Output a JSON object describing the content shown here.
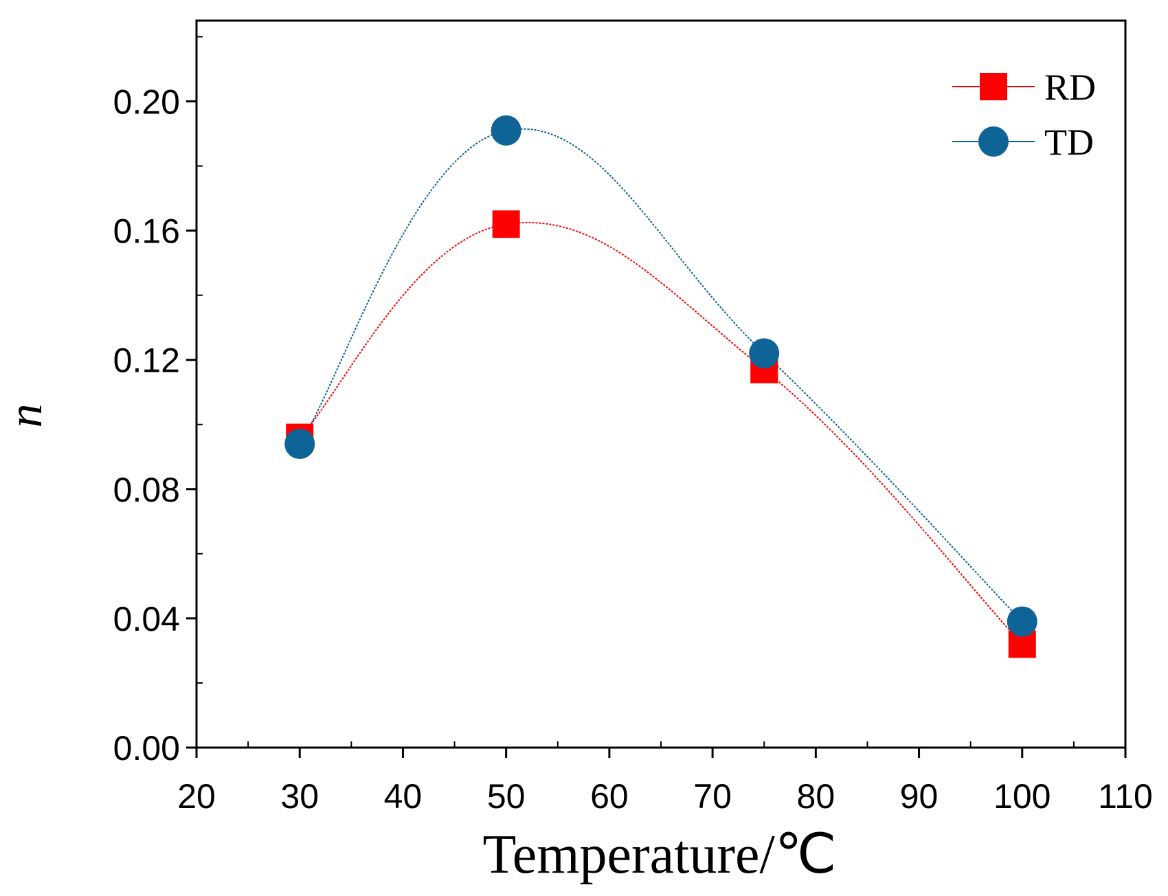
{
  "chart_data": {
    "type": "line",
    "title": "",
    "xlabel": "Temperature/℃",
    "ylabel": "n",
    "xlim": [
      20,
      110
    ],
    "ylim": [
      0.0,
      0.225
    ],
    "x_ticks": [
      20,
      30,
      40,
      50,
      60,
      70,
      80,
      90,
      100,
      110
    ],
    "y_ticks": [
      0.0,
      0.04,
      0.08,
      0.12,
      0.16,
      0.2
    ],
    "x_tick_labels": [
      "20",
      "30",
      "40",
      "50",
      "60",
      "70",
      "80",
      "90",
      "100",
      "110"
    ],
    "y_tick_labels": [
      "0.00",
      "0.04",
      "0.08",
      "0.12",
      "0.16",
      "0.20"
    ],
    "grid": false,
    "legend_position": "top-right",
    "series": [
      {
        "name": "RD",
        "color": "#ff0000",
        "marker": "square",
        "x": [
          30,
          50,
          75,
          100
        ],
        "values": [
          0.096,
          0.162,
          0.117,
          0.032
        ]
      },
      {
        "name": "TD",
        "color": "#0e6496",
        "marker": "circle",
        "x": [
          30,
          50,
          75,
          100
        ],
        "values": [
          0.094,
          0.191,
          0.122,
          0.039
        ]
      }
    ]
  }
}
